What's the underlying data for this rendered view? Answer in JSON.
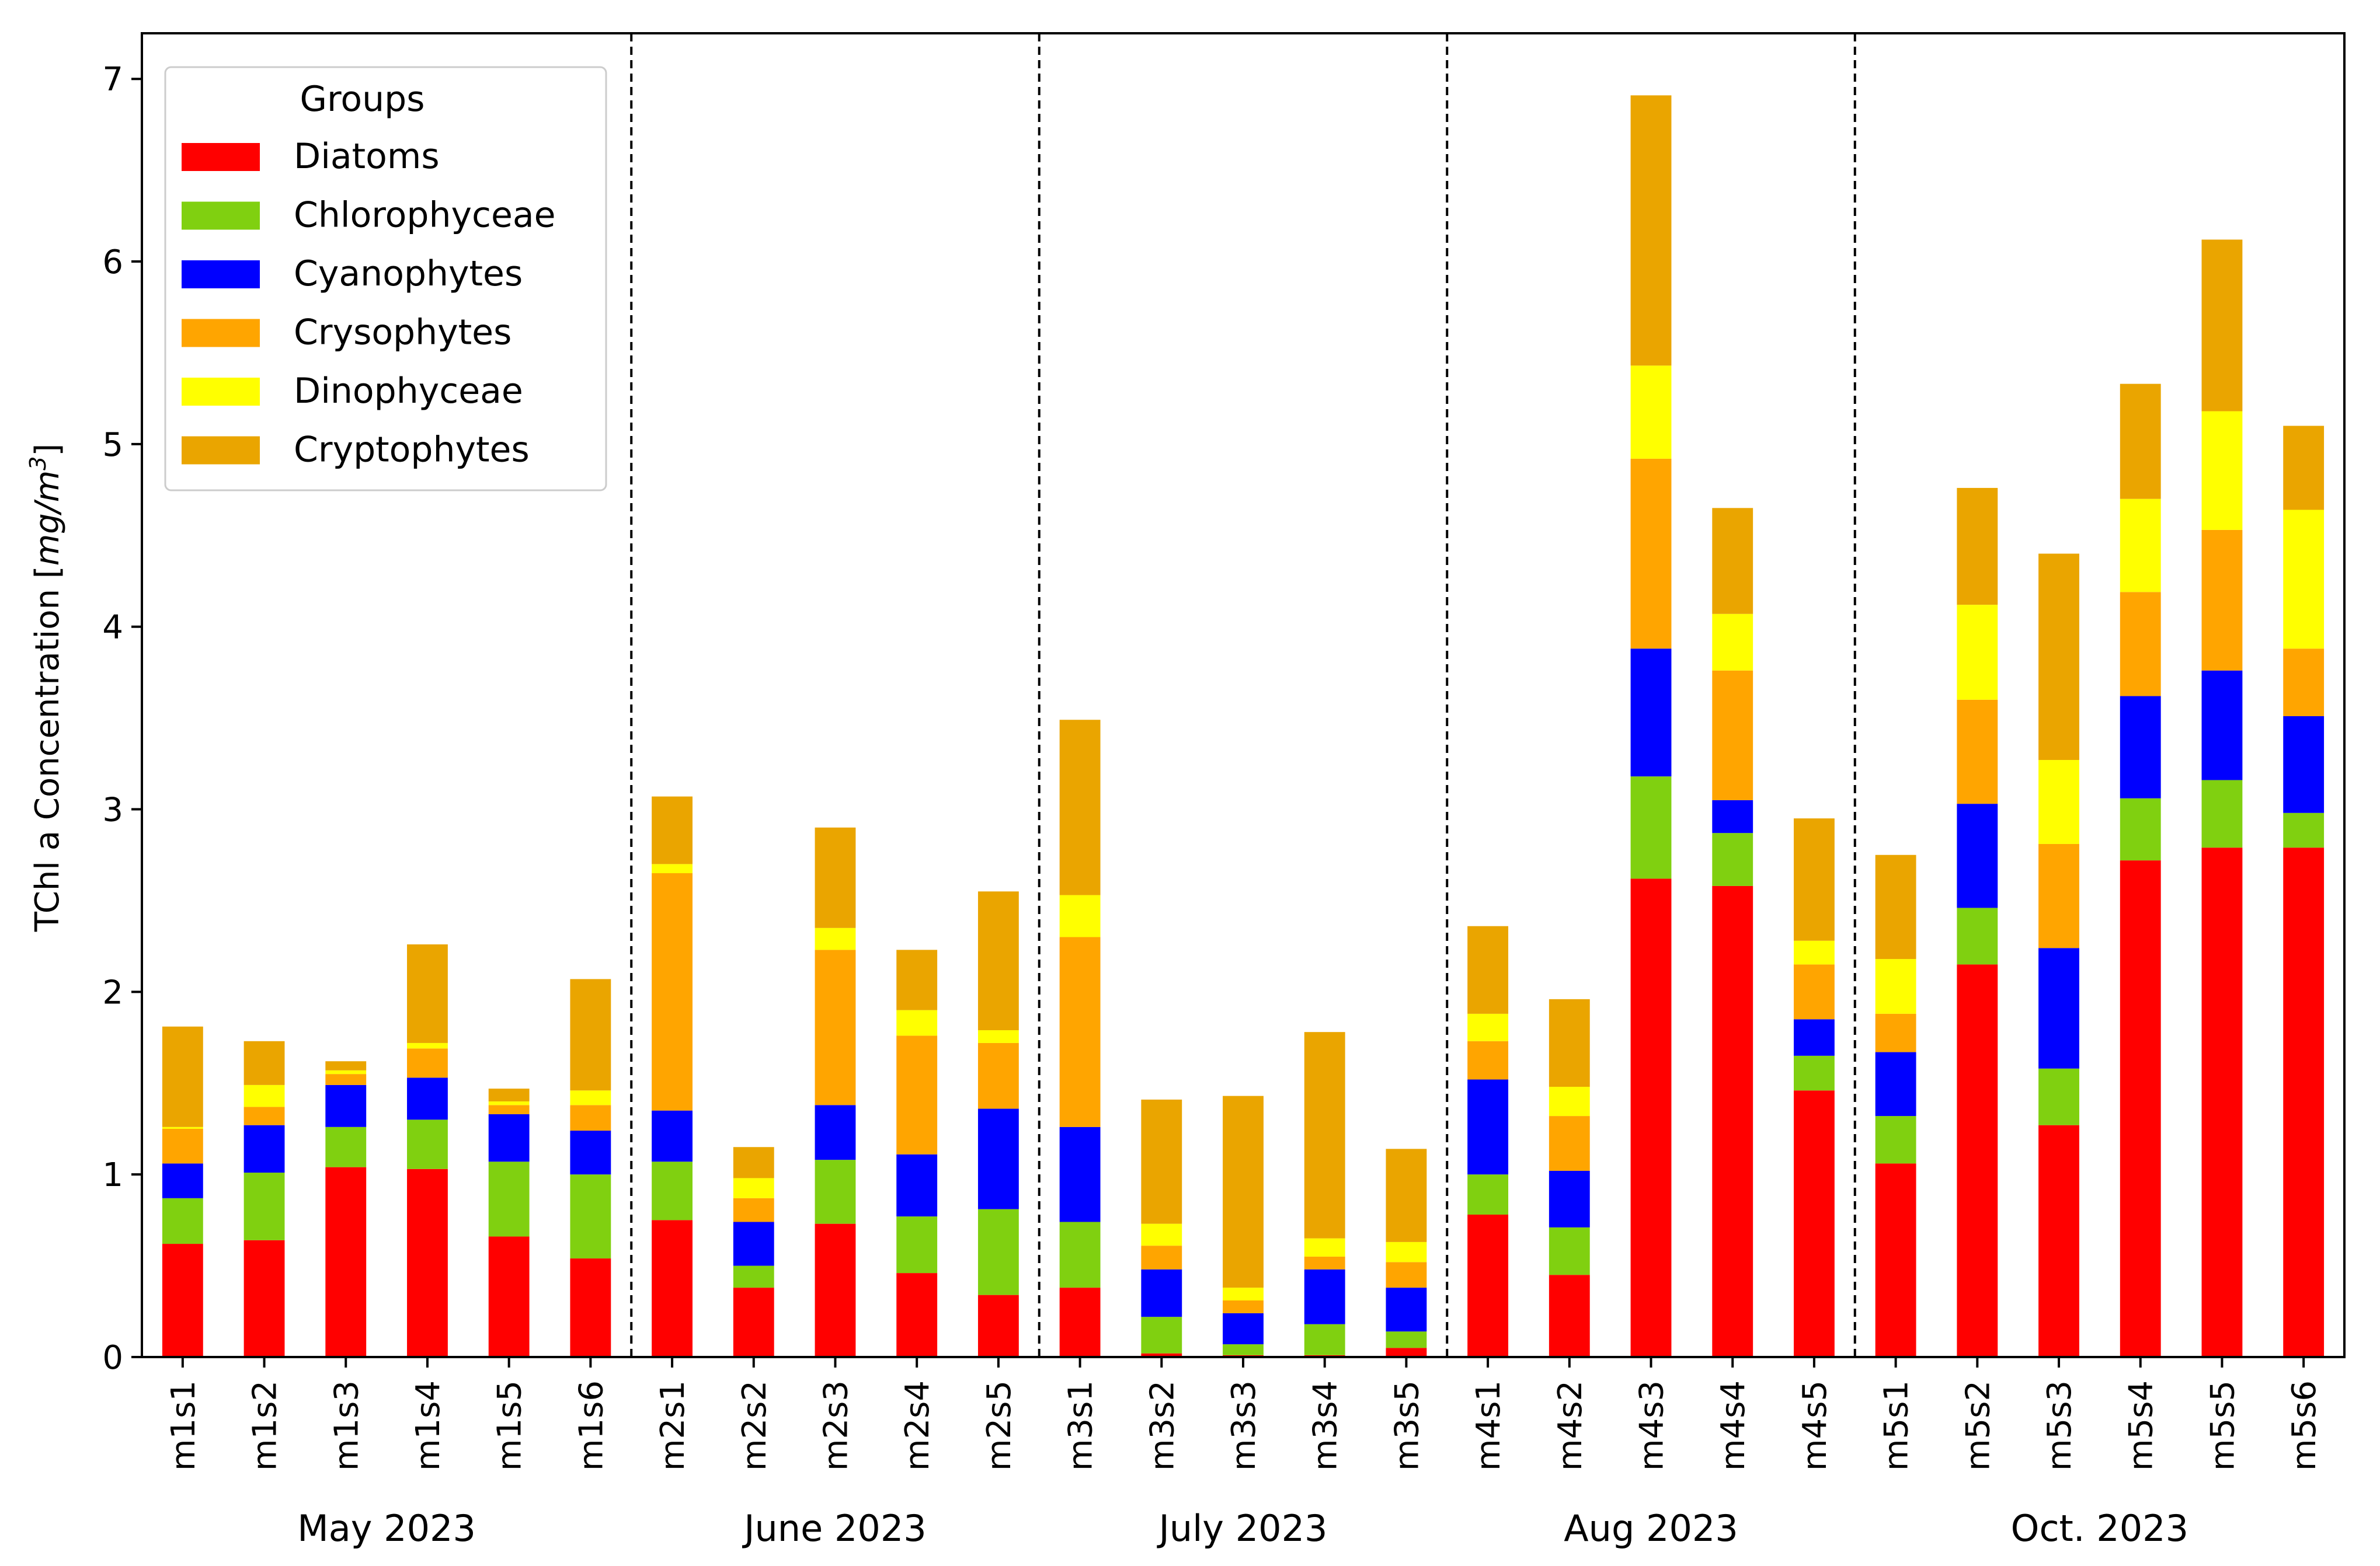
{
  "chart_data": {
    "type": "bar",
    "stacked": true,
    "title": "",
    "xlabel": "",
    "ylabel_prefix": "TChl a Concentration [",
    "ylabel_unit_main": "mg/m",
    "ylabel_unit_sup": "3",
    "ylabel_suffix": "]",
    "ylim": [
      0,
      7.25
    ],
    "yticks": [
      0,
      1,
      2,
      3,
      4,
      5,
      6,
      7
    ],
    "grid": false,
    "legend_title": "Groups",
    "legend_position": "top-left",
    "categories": [
      "m1s1",
      "m1s2",
      "m1s3",
      "m1s4",
      "m1s5",
      "m1s6",
      "m2s1",
      "m2s2",
      "m2s3",
      "m2s4",
      "m2s5",
      "m3s1",
      "m3s2",
      "m3s3",
      "m3s4",
      "m3s5",
      "m4s1",
      "m4s2",
      "m4s3",
      "m4s4",
      "m4s5",
      "m5s1",
      "m5s2",
      "m5s3",
      "m5s4",
      "m5s5",
      "m5s6"
    ],
    "groups": [
      {
        "label": "May 2023",
        "start": 0,
        "count": 6
      },
      {
        "label": "June 2023",
        "start": 6,
        "count": 5
      },
      {
        "label": "July 2023",
        "start": 11,
        "count": 5
      },
      {
        "label": "Aug 2023",
        "start": 16,
        "count": 5
      },
      {
        "label": "Oct. 2023",
        "start": 21,
        "count": 6
      }
    ],
    "series": [
      {
        "name": "Diatoms",
        "color": "#ff0000",
        "values": [
          0.62,
          0.64,
          1.04,
          1.03,
          0.66,
          0.54,
          0.75,
          0.38,
          0.73,
          0.46,
          0.34,
          0.38,
          0.02,
          0.01,
          0.01,
          0.05,
          0.78,
          0.45,
          2.62,
          2.58,
          1.46,
          1.06,
          2.15,
          1.27,
          2.72,
          2.79,
          2.79
        ]
      },
      {
        "name": "Chlorophyceae",
        "color": "#80d010",
        "values": [
          0.25,
          0.37,
          0.22,
          0.27,
          0.41,
          0.46,
          0.32,
          0.12,
          0.35,
          0.31,
          0.47,
          0.36,
          0.2,
          0.06,
          0.17,
          0.09,
          0.22,
          0.26,
          0.56,
          0.29,
          0.19,
          0.26,
          0.31,
          0.31,
          0.34,
          0.37,
          0.19
        ]
      },
      {
        "name": "Cyanophytes",
        "color": "#0000ff",
        "values": [
          0.19,
          0.26,
          0.23,
          0.23,
          0.26,
          0.24,
          0.28,
          0.24,
          0.3,
          0.34,
          0.55,
          0.52,
          0.26,
          0.17,
          0.3,
          0.24,
          0.52,
          0.31,
          0.7,
          0.18,
          0.2,
          0.35,
          0.57,
          0.66,
          0.56,
          0.6,
          0.53
        ]
      },
      {
        "name": "Crysophytes",
        "color": "#ffa500",
        "values": [
          0.19,
          0.1,
          0.06,
          0.16,
          0.05,
          0.14,
          1.3,
          0.13,
          0.85,
          0.65,
          0.36,
          1.04,
          0.13,
          0.07,
          0.07,
          0.14,
          0.21,
          0.3,
          1.04,
          0.71,
          0.3,
          0.21,
          0.57,
          0.57,
          0.57,
          0.77,
          0.37
        ]
      },
      {
        "name": "Dinophyceae",
        "color": "#ffff00",
        "values": [
          0.01,
          0.12,
          0.02,
          0.03,
          0.02,
          0.08,
          0.05,
          0.11,
          0.12,
          0.14,
          0.07,
          0.23,
          0.12,
          0.07,
          0.1,
          0.11,
          0.15,
          0.16,
          0.51,
          0.31,
          0.13,
          0.3,
          0.52,
          0.46,
          0.51,
          0.65,
          0.76
        ]
      },
      {
        "name": "Cryptophytes",
        "color": "#eaa500",
        "values": [
          0.55,
          0.24,
          0.05,
          0.54,
          0.07,
          0.61,
          0.37,
          0.17,
          0.55,
          0.33,
          0.76,
          0.96,
          0.68,
          1.05,
          1.13,
          0.51,
          0.48,
          0.48,
          1.48,
          0.58,
          0.67,
          0.57,
          0.64,
          1.13,
          0.63,
          0.94,
          0.46
        ]
      }
    ]
  }
}
